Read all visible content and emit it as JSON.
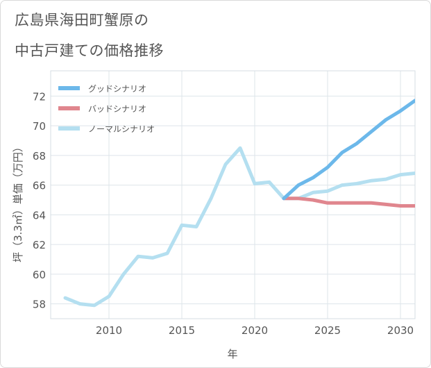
{
  "title_line1": "広島県海田町蟹原の",
  "title_line2": "中古戸建ての価格推移",
  "chart_data": {
    "type": "line",
    "xlabel": "年",
    "ylabel": "坪（3.3㎡）単価（万円）",
    "xlim": [
      2006,
      2031
    ],
    "ylim": [
      57,
      73.7
    ],
    "xticks": [
      2010,
      2015,
      2020,
      2025,
      2030
    ],
    "yticks": [
      58,
      60,
      62,
      64,
      66,
      68,
      70,
      72
    ],
    "legend_position": "top-left",
    "series": [
      {
        "name": "グッドシナリオ",
        "color": "#6cb8ea",
        "x": [
          2022,
          2023,
          2024,
          2025,
          2026,
          2027,
          2028,
          2029,
          2030,
          2031
        ],
        "y": [
          65.1,
          66.0,
          66.5,
          67.2,
          68.2,
          68.8,
          69.6,
          70.4,
          71.0,
          71.7
        ]
      },
      {
        "name": "バッドシナリオ",
        "color": "#e0868e",
        "x": [
          2022,
          2023,
          2024,
          2025,
          2026,
          2027,
          2028,
          2029,
          2030,
          2031
        ],
        "y": [
          65.1,
          65.1,
          65.0,
          64.8,
          64.8,
          64.8,
          64.8,
          64.7,
          64.6,
          64.6
        ]
      },
      {
        "name": "ノーマルシナリオ",
        "color": "#b4dff0",
        "x": [
          2007,
          2008,
          2009,
          2010,
          2011,
          2012,
          2013,
          2014,
          2015,
          2016,
          2017,
          2018,
          2019,
          2020,
          2021,
          2022,
          2023,
          2024,
          2025,
          2026,
          2027,
          2028,
          2029,
          2030,
          2031
        ],
        "y": [
          58.4,
          58.0,
          57.9,
          58.5,
          60.0,
          61.2,
          61.1,
          61.4,
          63.3,
          63.2,
          65.1,
          67.4,
          68.5,
          66.1,
          66.2,
          65.1,
          65.1,
          65.5,
          65.6,
          66.0,
          66.1,
          66.3,
          66.4,
          66.7,
          66.8
        ]
      }
    ]
  }
}
